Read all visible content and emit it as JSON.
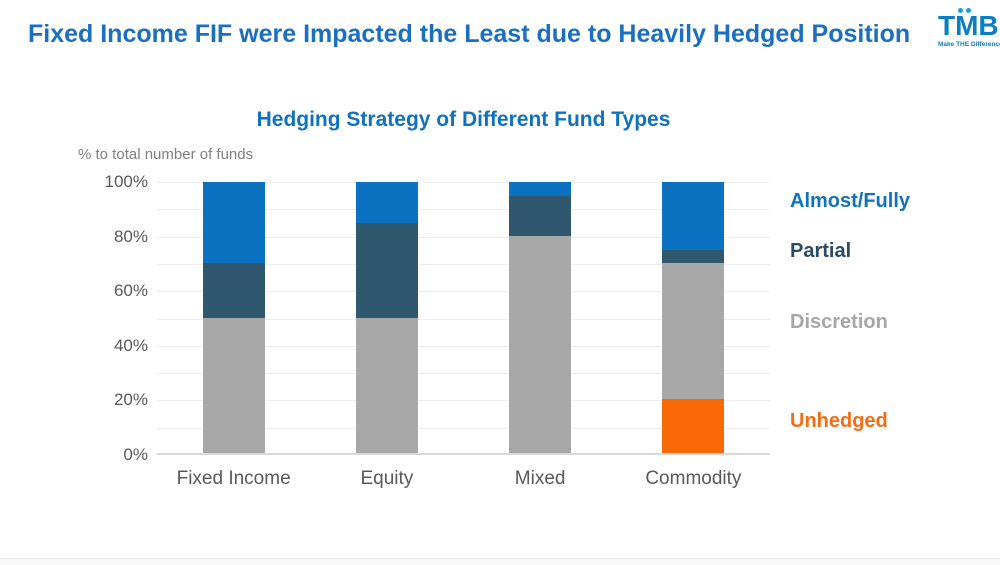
{
  "header": {
    "title": "Fixed Income FIF were Impacted the Least due to Heavily Hedged Position",
    "title_color": "#1a6fc0",
    "logo": {
      "text": "TMB",
      "tagline": "Make THE Difference",
      "color": "#0a7ec6"
    }
  },
  "chart_data": {
    "type": "bar",
    "stacked": true,
    "title": "Hedging Strategy of Different Fund Types",
    "title_color": "#0f72c1",
    "axis_note": "% to total number of funds",
    "categories": [
      "Fixed Income",
      "Equity",
      "Mixed",
      "Commodity"
    ],
    "series": [
      {
        "name": "Unhedged",
        "color": "#f96a07",
        "values": [
          0,
          0,
          0,
          20
        ]
      },
      {
        "name": "Discretion",
        "color": "#a8a8a8",
        "values": [
          50,
          50,
          80,
          50
        ]
      },
      {
        "name": "Partial",
        "color": "#2f586f",
        "values": [
          20,
          35,
          15,
          5
        ]
      },
      {
        "name": "Almost/Fully",
        "color": "#0b72c2",
        "values": [
          30,
          15,
          5,
          25
        ]
      }
    ],
    "stack_order": "bottom-to-top",
    "ylim": [
      0,
      100
    ],
    "y_ticks": [
      "0%",
      "20%",
      "40%",
      "60%",
      "80%",
      "100%"
    ],
    "grid": "horizontal lines every 10%",
    "legend_position": "right",
    "legend": [
      {
        "label": "Almost/Fully",
        "color": "#1071bd"
      },
      {
        "label": "Partial",
        "color": "#2c4a63"
      },
      {
        "label": "Discretion",
        "color": "#a6a6a6"
      },
      {
        "label": "Unhedged",
        "color": "#f26d15"
      }
    ]
  }
}
